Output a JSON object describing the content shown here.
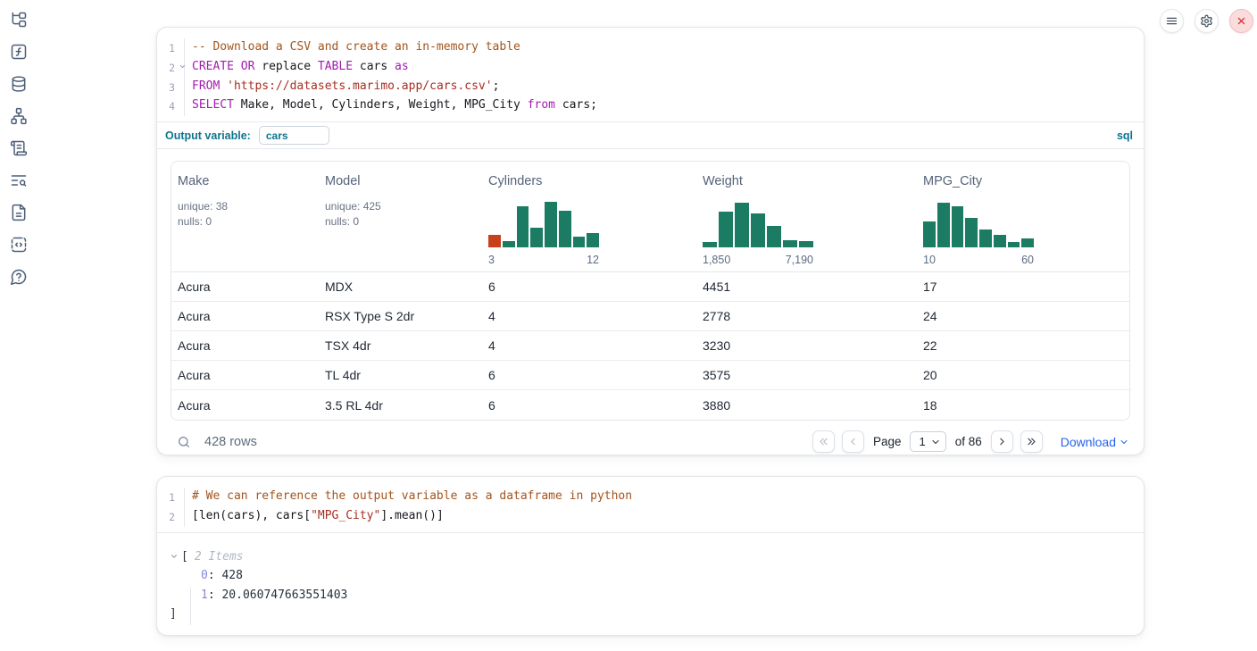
{
  "theme": {
    "hist_green": "#1b7c63",
    "hist_orange": "#c7411c",
    "accent_blue": "#2563eb",
    "sql_teal": "#0e7490",
    "danger_red": "#d83737"
  },
  "sidebar": {
    "items": [
      {
        "name": "file-tree-icon",
        "icon": "file-tree"
      },
      {
        "name": "function-square-icon",
        "icon": "function-square"
      },
      {
        "name": "database-icon",
        "icon": "database"
      },
      {
        "name": "dependency-graph-icon",
        "icon": "network"
      },
      {
        "name": "scroll-logs-icon",
        "icon": "scroll-text"
      },
      {
        "name": "list-search-icon",
        "icon": "text-search"
      },
      {
        "name": "document-icon",
        "icon": "file-text"
      },
      {
        "name": "code-snippets-icon",
        "icon": "code-box"
      },
      {
        "name": "help-bubble-icon",
        "icon": "help-bubble"
      }
    ]
  },
  "window_controls": [
    {
      "name": "menu-button",
      "icon": "menu",
      "danger": false
    },
    {
      "name": "settings-button",
      "icon": "settings",
      "danger": false
    },
    {
      "name": "shutdown-button",
      "icon": "close",
      "danger": true
    }
  ],
  "sql_cell": {
    "lines": [
      {
        "num": "1",
        "fold": false,
        "tokens": [
          [
            "comment",
            "-- Download a CSV and create an in-memory table"
          ]
        ]
      },
      {
        "num": "2",
        "fold": true,
        "tokens": [
          [
            "kw",
            "CREATE"
          ],
          [
            "plain",
            " "
          ],
          [
            "kw",
            "OR"
          ],
          [
            "plain",
            " replace "
          ],
          [
            "kw",
            "TABLE"
          ],
          [
            "plain",
            " cars "
          ],
          [
            "kw",
            "as"
          ]
        ]
      },
      {
        "num": "3",
        "fold": false,
        "tokens": [
          [
            "kw",
            "FROM"
          ],
          [
            "plain",
            " "
          ],
          [
            "str",
            "'https://datasets.marimo.app/cars.csv'"
          ],
          [
            "plain",
            ";"
          ]
        ]
      },
      {
        "num": "4",
        "fold": false,
        "tokens": [
          [
            "kw",
            "SELECT"
          ],
          [
            "plain",
            " Make, Model, Cylinders, Weight, MPG_City "
          ],
          [
            "kw",
            "from"
          ],
          [
            "plain",
            " cars;"
          ]
        ]
      }
    ],
    "output_variable": {
      "label": "Output variable:",
      "value": "cars"
    },
    "language": "sql"
  },
  "table": {
    "columns": [
      {
        "name": "Make",
        "stats": [
          "unique: 38",
          "nulls: 0"
        ]
      },
      {
        "name": "Model",
        "stats": [
          "unique: 425",
          "nulls: 0"
        ]
      },
      {
        "name": "Cylinders",
        "hist_chart": 0
      },
      {
        "name": "Weight",
        "hist_chart": 1
      },
      {
        "name": "MPG_City",
        "hist_chart": 2
      }
    ],
    "rows": [
      [
        "Acura",
        "MDX",
        "6",
        "4451",
        "17"
      ],
      [
        "Acura",
        "RSX Type S 2dr",
        "4",
        "2778",
        "24"
      ],
      [
        "Acura",
        "TSX 4dr",
        "4",
        "3230",
        "22"
      ],
      [
        "Acura",
        "TL 4dr",
        "6",
        "3575",
        "20"
      ],
      [
        "Acura",
        "3.5 RL 4dr",
        "6",
        "3880",
        "18"
      ]
    ],
    "footer": {
      "row_count": "428 rows",
      "page_label": "Page",
      "page_value": "1",
      "of_label": "of 86",
      "download_label": "Download"
    }
  },
  "chart_data": [
    {
      "type": "bar",
      "title": "Cylinders histogram",
      "tick_labels": [
        "3",
        "12"
      ],
      "x_range": [
        3,
        12
      ],
      "relative_heights": [
        0.26,
        0.13,
        0.88,
        0.42,
        0.97,
        0.78,
        0.23,
        0.3
      ],
      "highlight_first_bin": true
    },
    {
      "type": "bar",
      "title": "Weight histogram",
      "tick_labels": [
        "1,850",
        "7,190"
      ],
      "x_range": [
        1850,
        7190
      ],
      "relative_heights": [
        0.12,
        0.75,
        0.95,
        0.72,
        0.46,
        0.16,
        0.13
      ],
      "highlight_first_bin": false
    },
    {
      "type": "bar",
      "title": "MPG_City histogram",
      "tick_labels": [
        "10",
        "60"
      ],
      "x_range": [
        10,
        60
      ],
      "relative_heights": [
        0.55,
        0.95,
        0.88,
        0.62,
        0.38,
        0.27,
        0.12,
        0.2
      ],
      "highlight_first_bin": false
    }
  ],
  "python_cell": {
    "lines": [
      {
        "num": "1",
        "fold": false,
        "tokens": [
          [
            "comment",
            "# We can reference the output variable as a dataframe in python"
          ]
        ]
      },
      {
        "num": "2",
        "fold": false,
        "tokens": [
          [
            "plain",
            "[len(cars), cars["
          ],
          [
            "str",
            "\"MPG_City\""
          ],
          [
            "plain",
            "].mean()]"
          ]
        ]
      }
    ]
  },
  "python_output": {
    "open_bracket": "[",
    "items_label": "2 Items",
    "items": [
      {
        "key": "0",
        "value": "428"
      },
      {
        "key": "1",
        "value": "20.060747663551403"
      }
    ],
    "close_bracket": "]"
  }
}
